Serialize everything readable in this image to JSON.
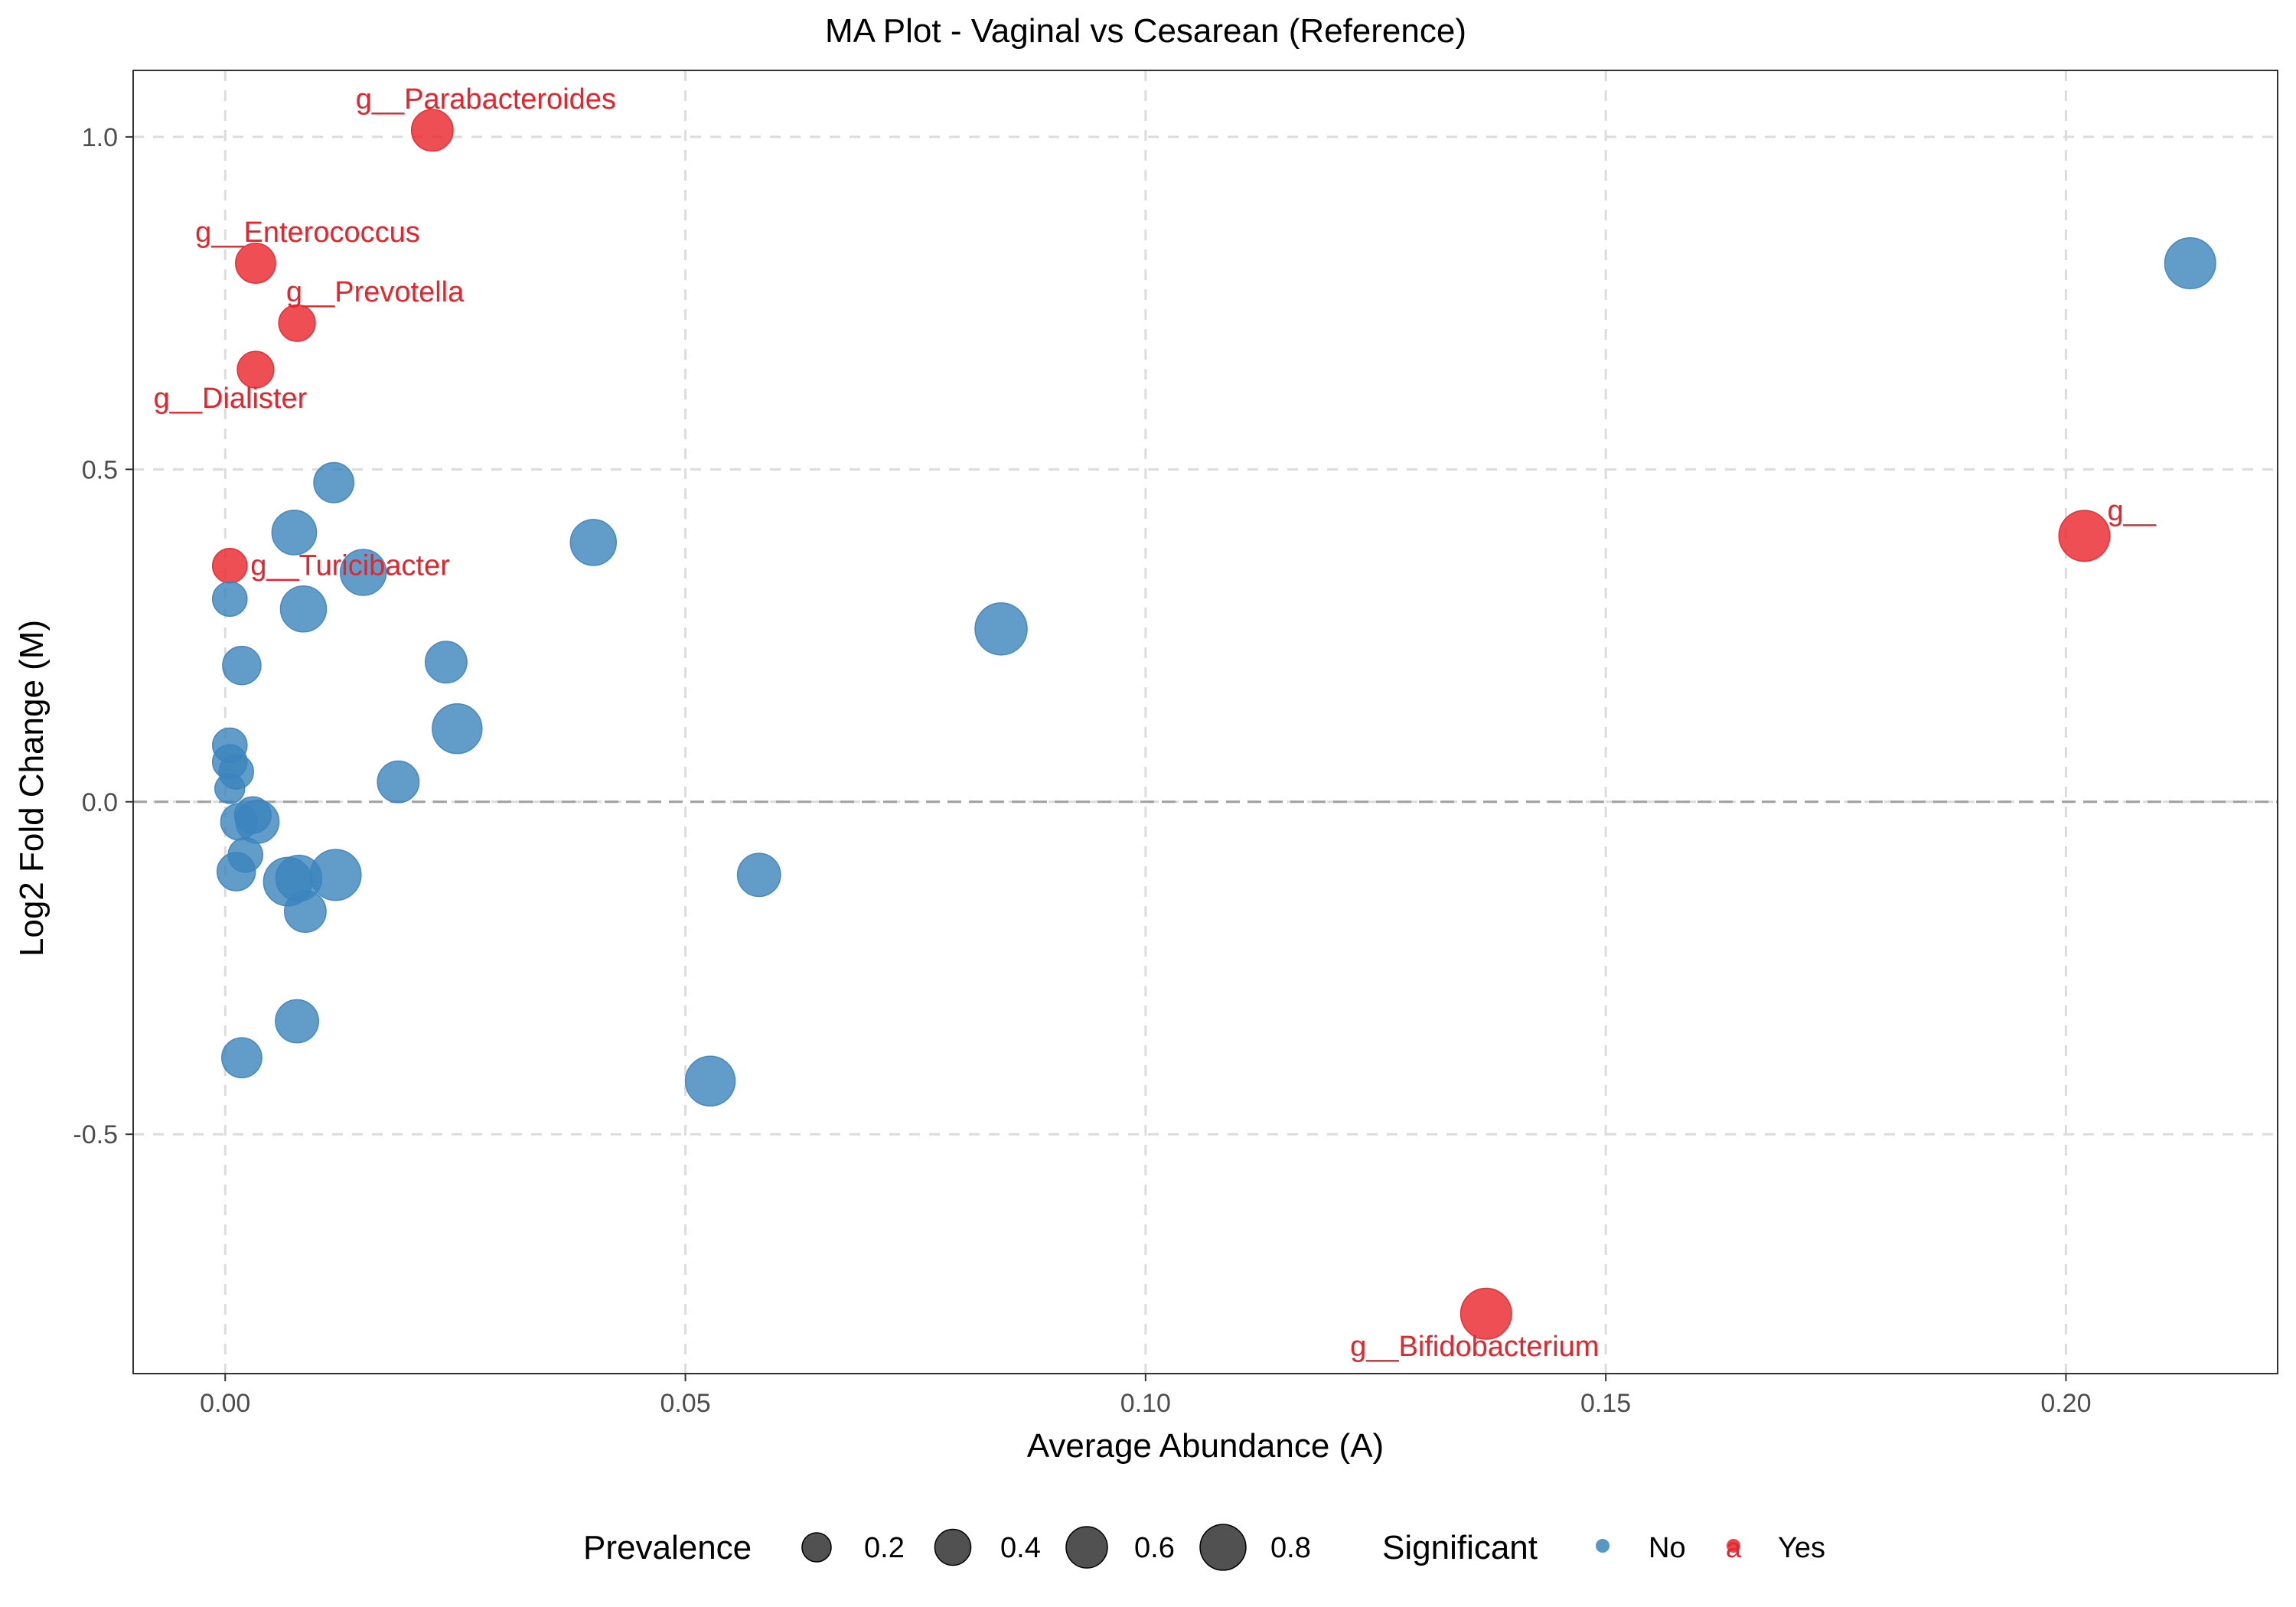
{
  "chart_data": {
    "type": "scatter",
    "title": "MA Plot - Vaginal vs Cesarean (Reference)",
    "xlabel": "Average Abundance (A)",
    "ylabel": "Log2 Fold Change (M)",
    "xlim": [
      -0.01,
      0.223
    ],
    "ylim": [
      -0.86,
      1.1
    ],
    "x_ticks": [
      0.0,
      0.05,
      0.1,
      0.15,
      0.2
    ],
    "x_tick_labels": [
      "0.00",
      "0.05",
      "0.10",
      "0.15",
      "0.20"
    ],
    "y_ticks": [
      -0.5,
      0.0,
      0.5,
      1.0
    ],
    "y_tick_labels": [
      "-0.5",
      "0.0",
      "0.5",
      "1.0"
    ],
    "reference_line_y": 0,
    "grid": true,
    "legend_position": "bottom",
    "legend": {
      "size_title": "Prevalence",
      "size_entries": [
        {
          "label": "0.2",
          "value": 0.2
        },
        {
          "label": "0.4",
          "value": 0.4
        },
        {
          "label": "0.6",
          "value": 0.6
        },
        {
          "label": "0.8",
          "value": 0.8
        }
      ],
      "color_title": "Significant",
      "color_entries": [
        {
          "label": "No",
          "color": "#3b84bd",
          "key": "no"
        },
        {
          "label": "Yes",
          "color": "#e8232a",
          "key": "yes"
        }
      ],
      "yes_key_glyph": "a"
    },
    "colors": {
      "no": "#3b84bd",
      "yes": "#e8232a",
      "text_label": "#e8232a",
      "axis_text": "#4d4d4d",
      "grid": "#dcdcdc",
      "zero_line": "#a0a0a0"
    },
    "points": [
      {
        "x": 0.0225,
        "y": 1.01,
        "prevalence": 0.45,
        "significant": "yes",
        "label": "g__Parabacteroides"
      },
      {
        "x": 0.0033,
        "y": 0.81,
        "prevalence": 0.4,
        "significant": "yes",
        "label": "g__Enterococcus"
      },
      {
        "x": 0.0078,
        "y": 0.72,
        "prevalence": 0.3,
        "significant": "yes",
        "label": "g__Prevotella"
      },
      {
        "x": 0.0033,
        "y": 0.65,
        "prevalence": 0.3,
        "significant": "yes",
        "label": "g__Dialister"
      },
      {
        "x": 0.0005,
        "y": 0.355,
        "prevalence": 0.25,
        "significant": "yes",
        "label": "g__Turicibacter"
      },
      {
        "x": 0.202,
        "y": 0.4,
        "prevalence": 0.8,
        "significant": "yes",
        "label": "g__"
      },
      {
        "x": 0.137,
        "y": -0.77,
        "prevalence": 0.8,
        "significant": "yes",
        "label": "g__Bifidobacterium"
      },
      {
        "x": 0.2135,
        "y": 0.81,
        "prevalence": 0.8,
        "significant": "no"
      },
      {
        "x": 0.0118,
        "y": 0.48,
        "prevalence": 0.4,
        "significant": "no"
      },
      {
        "x": 0.0075,
        "y": 0.405,
        "prevalence": 0.55,
        "significant": "no"
      },
      {
        "x": 0.04,
        "y": 0.39,
        "prevalence": 0.6,
        "significant": "no"
      },
      {
        "x": 0.015,
        "y": 0.345,
        "prevalence": 0.6,
        "significant": "no"
      },
      {
        "x": 0.0005,
        "y": 0.305,
        "prevalence": 0.25,
        "significant": "no"
      },
      {
        "x": 0.0085,
        "y": 0.29,
        "prevalence": 0.6,
        "significant": "no"
      },
      {
        "x": 0.0843,
        "y": 0.26,
        "prevalence": 0.85,
        "significant": "no"
      },
      {
        "x": 0.0018,
        "y": 0.205,
        "prevalence": 0.35,
        "significant": "no"
      },
      {
        "x": 0.024,
        "y": 0.21,
        "prevalence": 0.45,
        "significant": "no"
      },
      {
        "x": 0.0252,
        "y": 0.11,
        "prevalence": 0.75,
        "significant": "no"
      },
      {
        "x": 0.0005,
        "y": 0.085,
        "prevalence": 0.25,
        "significant": "no"
      },
      {
        "x": 0.0005,
        "y": 0.06,
        "prevalence": 0.25,
        "significant": "no"
      },
      {
        "x": 0.0012,
        "y": 0.045,
        "prevalence": 0.25,
        "significant": "no"
      },
      {
        "x": 0.0005,
        "y": 0.02,
        "prevalence": 0.15,
        "significant": "no"
      },
      {
        "x": 0.0188,
        "y": 0.03,
        "prevalence": 0.45,
        "significant": "no"
      },
      {
        "x": 0.0015,
        "y": -0.03,
        "prevalence": 0.3,
        "significant": "no"
      },
      {
        "x": 0.003,
        "y": -0.02,
        "prevalence": 0.3,
        "significant": "no"
      },
      {
        "x": 0.0035,
        "y": -0.03,
        "prevalence": 0.5,
        "significant": "no"
      },
      {
        "x": 0.0022,
        "y": -0.08,
        "prevalence": 0.25,
        "significant": "no"
      },
      {
        "x": 0.0012,
        "y": -0.105,
        "prevalence": 0.35,
        "significant": "no"
      },
      {
        "x": 0.0068,
        "y": -0.12,
        "prevalence": 0.7,
        "significant": "no"
      },
      {
        "x": 0.008,
        "y": -0.115,
        "prevalence": 0.6,
        "significant": "no"
      },
      {
        "x": 0.012,
        "y": -0.11,
        "prevalence": 0.8,
        "significant": "no"
      },
      {
        "x": 0.0087,
        "y": -0.165,
        "prevalence": 0.45,
        "significant": "no"
      },
      {
        "x": 0.058,
        "y": -0.11,
        "prevalence": 0.5,
        "significant": "no"
      },
      {
        "x": 0.0078,
        "y": -0.33,
        "prevalence": 0.5,
        "significant": "no"
      },
      {
        "x": 0.0018,
        "y": -0.385,
        "prevalence": 0.4,
        "significant": "no"
      },
      {
        "x": 0.0527,
        "y": -0.42,
        "prevalence": 0.75,
        "significant": "no"
      }
    ]
  }
}
